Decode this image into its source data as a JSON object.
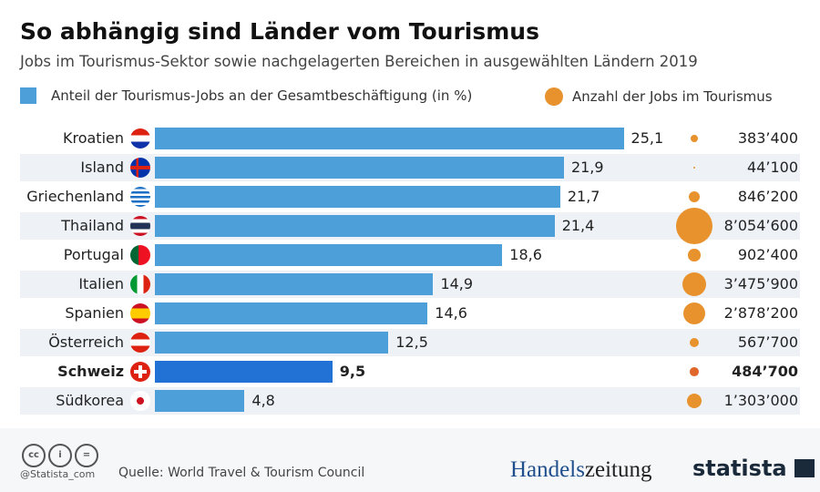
{
  "title": "So abhängig sind Länder vom Tourismus",
  "subtitle": "Jobs im Tourismus-Sektor sowie nachgelagerten Bereichen in ausgewählten Ländern 2019",
  "legend": {
    "bars": "Anteil der Tourismus-Jobs an der Gesamtbeschäftigung (in %)",
    "bubbles": "Anzahl der Jobs im Tourismus"
  },
  "colors": {
    "bar": "#4c9fd8",
    "highlight": "#2271d4",
    "bubble": "#e8922e",
    "highlight_bubble": "#e0672c",
    "row_alt": "#eef2f7"
  },
  "chart_data": {
    "type": "bar",
    "orientation": "horizontal",
    "categories": [
      "Kroatien",
      "Island",
      "Griechenland",
      "Thailand",
      "Portugal",
      "Italien",
      "Spanien",
      "Österreich",
      "Schweiz",
      "Südkorea"
    ],
    "flags": [
      "hr",
      "is",
      "gr",
      "th",
      "pt",
      "it",
      "es",
      "at",
      "ch",
      "kr"
    ],
    "highlight": "Schweiz",
    "series": [
      {
        "name": "Anteil der Tourismus-Jobs an der Gesamtbeschäftigung (in %)",
        "values": [
          25.1,
          21.9,
          21.7,
          21.4,
          18.6,
          14.9,
          14.6,
          12.5,
          9.5,
          4.8
        ],
        "labels": [
          "25,1",
          "21,9",
          "21,7",
          "21,4",
          "18,6",
          "14,9",
          "14,6",
          "12,5",
          "9,5",
          "4,8"
        ]
      },
      {
        "name": "Anzahl der Jobs im Tourismus",
        "values": [
          383400,
          44100,
          846200,
          8054600,
          902400,
          3475900,
          2878200,
          567700,
          484700,
          1303000
        ],
        "labels": [
          "383’400",
          "44’100",
          "846’200",
          "8’054’600",
          "902’400",
          "3’475’900",
          "2’878’200",
          "567’700",
          "484’700",
          "1’303’000"
        ]
      }
    ]
  },
  "footer": {
    "handle": "@Statista_com",
    "source": "Quelle: World Travel & Tourism Council",
    "logo1a": "Handels",
    "logo1b": "zeitung",
    "logo2": "statista"
  }
}
